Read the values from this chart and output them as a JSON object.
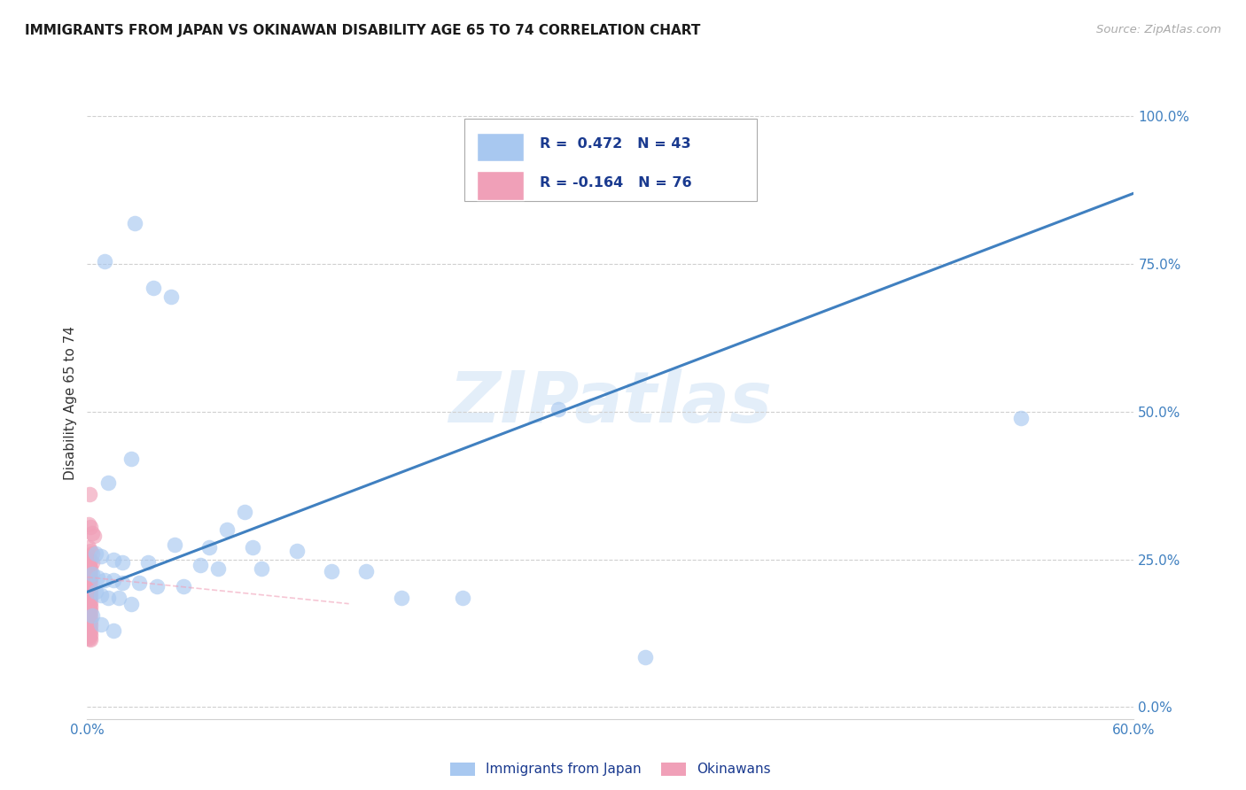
{
  "title": "IMMIGRANTS FROM JAPAN VS OKINAWAN DISABILITY AGE 65 TO 74 CORRELATION CHART",
  "source": "Source: ZipAtlas.com",
  "ylabel": "Disability Age 65 to 74",
  "xlim": [
    0.0,
    0.6
  ],
  "ylim": [
    -0.02,
    1.05
  ],
  "x_ticks": [
    0.0,
    0.1,
    0.2,
    0.3,
    0.4,
    0.5,
    0.6
  ],
  "x_tick_labels": [
    "0.0%",
    "",
    "",
    "",
    "",
    "",
    "60.0%"
  ],
  "y_ticks": [
    0.0,
    0.25,
    0.5,
    0.75,
    1.0
  ],
  "y_tick_labels": [
    "0.0%",
    "25.0%",
    "50.0%",
    "75.0%",
    "100.0%"
  ],
  "grid_color": "#d0d0d0",
  "background_color": "#ffffff",
  "blue_color": "#a8c8f0",
  "pink_color": "#f0a0b8",
  "line_blue_color": "#4080c0",
  "legend_color": "#1a3a8f",
  "watermark": "ZIPatlas",
  "blue_line_x": [
    0.0,
    0.6
  ],
  "blue_line_y": [
    0.195,
    0.87
  ],
  "pink_line_x": [
    0.0,
    0.15
  ],
  "pink_line_y": [
    0.22,
    0.175
  ],
  "blue_points": [
    [
      0.027,
      0.82
    ],
    [
      0.01,
      0.755
    ],
    [
      0.038,
      0.71
    ],
    [
      0.048,
      0.695
    ],
    [
      0.025,
      0.42
    ],
    [
      0.012,
      0.38
    ],
    [
      0.09,
      0.33
    ],
    [
      0.08,
      0.3
    ],
    [
      0.27,
      0.505
    ],
    [
      0.535,
      0.49
    ],
    [
      0.05,
      0.275
    ],
    [
      0.07,
      0.27
    ],
    [
      0.095,
      0.27
    ],
    [
      0.12,
      0.265
    ],
    [
      0.005,
      0.26
    ],
    [
      0.008,
      0.255
    ],
    [
      0.015,
      0.25
    ],
    [
      0.02,
      0.245
    ],
    [
      0.035,
      0.245
    ],
    [
      0.065,
      0.24
    ],
    [
      0.075,
      0.235
    ],
    [
      0.1,
      0.235
    ],
    [
      0.14,
      0.23
    ],
    [
      0.16,
      0.23
    ],
    [
      0.003,
      0.225
    ],
    [
      0.006,
      0.22
    ],
    [
      0.01,
      0.215
    ],
    [
      0.015,
      0.215
    ],
    [
      0.02,
      0.21
    ],
    [
      0.03,
      0.21
    ],
    [
      0.04,
      0.205
    ],
    [
      0.055,
      0.205
    ],
    [
      0.005,
      0.195
    ],
    [
      0.008,
      0.19
    ],
    [
      0.012,
      0.185
    ],
    [
      0.018,
      0.185
    ],
    [
      0.025,
      0.175
    ],
    [
      0.18,
      0.185
    ],
    [
      0.215,
      0.185
    ],
    [
      0.32,
      0.085
    ],
    [
      0.003,
      0.155
    ],
    [
      0.008,
      0.14
    ],
    [
      0.015,
      0.13
    ]
  ],
  "pink_points": [
    [
      0.0015,
      0.36
    ],
    [
      0.001,
      0.31
    ],
    [
      0.002,
      0.305
    ],
    [
      0.003,
      0.295
    ],
    [
      0.004,
      0.29
    ],
    [
      0.001,
      0.27
    ],
    [
      0.002,
      0.265
    ],
    [
      0.003,
      0.26
    ],
    [
      0.0005,
      0.255
    ],
    [
      0.001,
      0.25
    ],
    [
      0.002,
      0.248
    ],
    [
      0.003,
      0.245
    ],
    [
      0.0005,
      0.242
    ],
    [
      0.001,
      0.24
    ],
    [
      0.0015,
      0.238
    ],
    [
      0.002,
      0.235
    ],
    [
      0.0005,
      0.232
    ],
    [
      0.001,
      0.23
    ],
    [
      0.0015,
      0.228
    ],
    [
      0.002,
      0.226
    ],
    [
      0.0005,
      0.224
    ],
    [
      0.001,
      0.222
    ],
    [
      0.0015,
      0.22
    ],
    [
      0.002,
      0.218
    ],
    [
      0.0005,
      0.216
    ],
    [
      0.001,
      0.214
    ],
    [
      0.0015,
      0.212
    ],
    [
      0.002,
      0.21
    ],
    [
      0.0005,
      0.208
    ],
    [
      0.001,
      0.206
    ],
    [
      0.0015,
      0.204
    ],
    [
      0.002,
      0.202
    ],
    [
      0.0005,
      0.2
    ],
    [
      0.001,
      0.198
    ],
    [
      0.0015,
      0.196
    ],
    [
      0.002,
      0.194
    ],
    [
      0.0005,
      0.192
    ],
    [
      0.001,
      0.19
    ],
    [
      0.0015,
      0.188
    ],
    [
      0.002,
      0.186
    ],
    [
      0.0005,
      0.184
    ],
    [
      0.001,
      0.182
    ],
    [
      0.0015,
      0.18
    ],
    [
      0.002,
      0.178
    ],
    [
      0.0005,
      0.176
    ],
    [
      0.001,
      0.174
    ],
    [
      0.0015,
      0.172
    ],
    [
      0.002,
      0.17
    ],
    [
      0.0005,
      0.168
    ],
    [
      0.001,
      0.166
    ],
    [
      0.0015,
      0.164
    ],
    [
      0.002,
      0.162
    ],
    [
      0.0005,
      0.16
    ],
    [
      0.001,
      0.158
    ],
    [
      0.0015,
      0.156
    ],
    [
      0.002,
      0.154
    ],
    [
      0.0005,
      0.152
    ],
    [
      0.001,
      0.15
    ],
    [
      0.0015,
      0.148
    ],
    [
      0.002,
      0.146
    ],
    [
      0.0005,
      0.144
    ],
    [
      0.001,
      0.142
    ],
    [
      0.0015,
      0.14
    ],
    [
      0.002,
      0.138
    ],
    [
      0.0005,
      0.136
    ],
    [
      0.001,
      0.134
    ],
    [
      0.0015,
      0.132
    ],
    [
      0.002,
      0.13
    ],
    [
      0.0005,
      0.128
    ],
    [
      0.001,
      0.126
    ],
    [
      0.0015,
      0.124
    ],
    [
      0.002,
      0.122
    ],
    [
      0.0005,
      0.12
    ],
    [
      0.001,
      0.118
    ],
    [
      0.0015,
      0.116
    ],
    [
      0.002,
      0.114
    ]
  ]
}
